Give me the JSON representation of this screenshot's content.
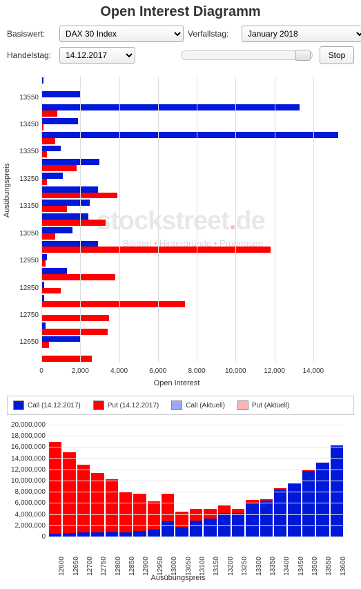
{
  "title": "Open Interest Diagramm",
  "labels": {
    "basiswert": "Basiswert:",
    "verfallstag": "Verfallstag:",
    "handelstag": "Handelstag:",
    "stop": "Stop",
    "xaxis": "Open Interest",
    "yaxis": "Ausübungspreis",
    "xaxis2": "Ausübungspreis"
  },
  "selects": {
    "basiswert": "DAX 30 Index",
    "verfallstag": "January 2018",
    "handelstag": "14.12.2017"
  },
  "colors": {
    "call": "#0018d8",
    "put": "#ff0000",
    "callAkt": "#9aa6ff",
    "putAkt": "#ffb3b3",
    "grid": "#dddddd",
    "bg": "#ffffff"
  },
  "hchart": {
    "xmax": 15500,
    "xticks": [
      0,
      2000,
      4000,
      6000,
      8000,
      10000,
      12000,
      14000
    ],
    "strikes": [
      13600,
      13550,
      13500,
      13450,
      13400,
      13350,
      13300,
      13250,
      13200,
      13150,
      13100,
      13050,
      13000,
      12950,
      12900,
      12850,
      12800,
      12750,
      12700,
      12650,
      12600
    ],
    "call": [
      100,
      2000,
      13300,
      1900,
      15300,
      1000,
      3000,
      1100,
      2900,
      2500,
      2400,
      1600,
      2900,
      300,
      1300,
      150,
      150,
      50,
      200,
      2000,
      50
    ],
    "put": [
      0,
      0,
      800,
      100,
      700,
      300,
      1800,
      300,
      3900,
      1300,
      3300,
      700,
      11800,
      200,
      3800,
      1000,
      7400,
      3500,
      3400,
      400,
      2600
    ]
  },
  "legend": [
    {
      "label": "Call (14.12.2017)",
      "colorKey": "call"
    },
    {
      "label": "Put (14.12.2017)",
      "colorKey": "put"
    },
    {
      "label": "Call (Aktuell)",
      "colorKey": "callAkt"
    },
    {
      "label": "Put (Aktuell)",
      "colorKey": "putAkt"
    }
  ],
  "vchart": {
    "ymax": 20000000,
    "yticks": [
      0,
      2000000,
      4000000,
      6000000,
      8000000,
      10000000,
      12000000,
      14000000,
      16000000,
      18000000,
      20000000
    ],
    "strikes": [
      12600,
      12650,
      12700,
      12750,
      12800,
      12850,
      12900,
      12950,
      13000,
      13050,
      13100,
      13150,
      13200,
      13250,
      13300,
      13350,
      13400,
      13450,
      13500,
      13550,
      13600
    ],
    "blue": [
      500000,
      600000,
      700000,
      800000,
      900000,
      800000,
      1000000,
      1200000,
      2700000,
      1700000,
      2900000,
      3200000,
      4200000,
      4200000,
      6000000,
      6400000,
      8400000,
      9400000,
      11800000,
      13200000,
      16300000
    ],
    "red": [
      16400000,
      14500000,
      12200000,
      10600000,
      9400000,
      7100000,
      6600000,
      5100000,
      4900000,
      2700000,
      2100000,
      1700000,
      1400000,
      700000,
      600000,
      300000,
      200000,
      100000,
      100000,
      0,
      0
    ]
  }
}
